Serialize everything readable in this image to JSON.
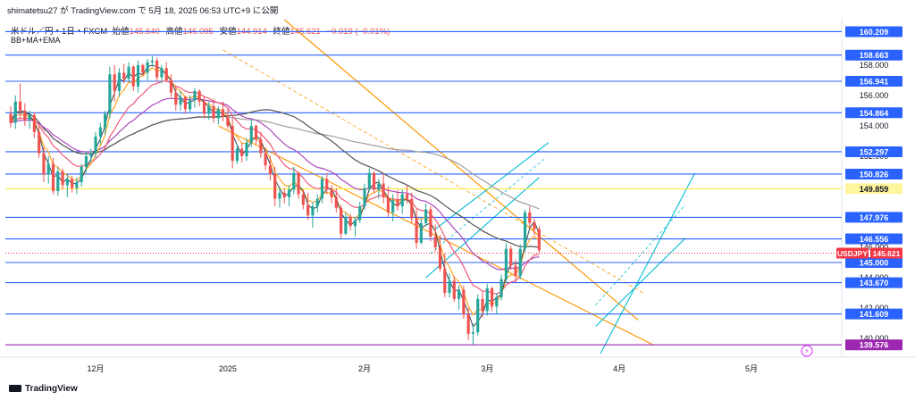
{
  "header": {
    "author_line": "shimatetsu27 が TradingView.com で 5月 18, 2025 06:53 UTC+9 に公開",
    "symbol_line": "米ドル／円・1日・FXCM",
    "open_label": "始値",
    "open": "145.640",
    "high_label": "高値",
    "high": "146.095",
    "low_label": "安値",
    "low": "144.914",
    "close_label": "終値",
    "close": "145.621",
    "change": "−0.019 (−0.01%)",
    "indicators": "BB+MA+EMA"
  },
  "footer": {
    "brand": "TradingView"
  },
  "colors": {
    "up": "#26a69a",
    "down": "#ef5350",
    "level": "#2962ff",
    "channel_orange": "#ff9800",
    "channel_cyan": "#00bcd4",
    "current_price": "#f23645",
    "magenta_level": "#9c27b0",
    "yellow_line": "#ffeb3b",
    "background": "#ffffff"
  },
  "chart_data": {
    "type": "candlestick",
    "symbol": "USDJPY",
    "timeframe": "1日",
    "current_price": 145.621,
    "ylim": [
      139.0,
      161.0
    ],
    "xlim": [
      0,
      175
    ],
    "y_ticks": [
      140,
      142,
      144,
      146,
      148,
      150,
      152,
      154,
      156,
      158
    ],
    "x_ticks": [
      {
        "i": 18,
        "label": "12月"
      },
      {
        "i": 46,
        "label": "2025"
      },
      {
        "i": 75,
        "label": "2月"
      },
      {
        "i": 101,
        "label": "3月"
      },
      {
        "i": 129,
        "label": "4月"
      },
      {
        "i": 157,
        "label": "5月"
      }
    ],
    "levels": [
      {
        "y": 160.209,
        "color": "#2962ff"
      },
      {
        "y": 158.663,
        "color": "#2962ff"
      },
      {
        "y": 156.941,
        "color": "#2962ff"
      },
      {
        "y": 154.864,
        "color": "#2962ff"
      },
      {
        "y": 152.297,
        "color": "#2962ff"
      },
      {
        "y": 150.826,
        "color": "#2962ff"
      },
      {
        "y": 149.859,
        "color": "#ffeb3b"
      },
      {
        "y": 147.976,
        "color": "#2962ff"
      },
      {
        "y": 146.556,
        "color": "#2962ff"
      },
      {
        "y": 145.0,
        "color": "#2962ff"
      },
      {
        "y": 143.67,
        "color": "#2962ff"
      },
      {
        "y": 141.609,
        "color": "#2962ff"
      },
      {
        "y": 139.576,
        "color": "#9c27b0"
      }
    ],
    "level_labels": [
      "160.209",
      "158.663",
      "156.941",
      "154.864",
      "152.297",
      "150.826",
      "149.859",
      "147.976",
      "146.556",
      "145.000",
      "143.670",
      "141.609",
      "139.576"
    ],
    "price_tag": "145.621",
    "candles": [
      [
        0,
        154.8,
        155.3,
        153.9,
        154.2
      ],
      [
        1,
        154.2,
        156.0,
        153.8,
        155.6
      ],
      [
        2,
        155.6,
        156.8,
        154.5,
        155.0
      ],
      [
        3,
        155.0,
        155.5,
        154.0,
        154.4
      ],
      [
        4,
        154.4,
        155.0,
        153.8,
        154.7
      ],
      [
        5,
        154.7,
        154.9,
        153.2,
        153.6
      ],
      [
        6,
        153.6,
        154.1,
        151.9,
        152.2
      ],
      [
        7,
        152.2,
        152.6,
        150.3,
        150.8
      ],
      [
        8,
        150.8,
        152.0,
        150.2,
        151.5
      ],
      [
        9,
        151.5,
        151.9,
        149.5,
        149.7
      ],
      [
        10,
        149.7,
        151.3,
        149.4,
        151.0
      ],
      [
        11,
        151.0,
        151.2,
        149.8,
        150.1
      ],
      [
        12,
        150.1,
        150.8,
        149.3,
        150.5
      ],
      [
        13,
        150.5,
        150.7,
        149.6,
        149.9
      ],
      [
        14,
        149.9,
        150.6,
        149.5,
        150.3
      ],
      [
        15,
        150.3,
        151.5,
        150.0,
        151.3
      ],
      [
        16,
        151.3,
        152.3,
        150.9,
        152.0
      ],
      [
        17,
        152.0,
        152.5,
        151.6,
        152.2
      ],
      [
        18,
        152.2,
        153.6,
        151.9,
        153.3
      ],
      [
        19,
        153.3,
        154.2,
        152.8,
        153.9
      ],
      [
        20,
        153.9,
        155.0,
        153.4,
        154.8
      ],
      [
        21,
        154.8,
        157.9,
        154.5,
        157.4
      ],
      [
        22,
        157.4,
        158.0,
        155.6,
        156.3
      ],
      [
        23,
        156.3,
        157.8,
        155.9,
        157.5
      ],
      [
        24,
        157.5,
        158.1,
        156.8,
        157.1
      ],
      [
        25,
        157.1,
        158.2,
        156.9,
        157.9
      ],
      [
        26,
        157.9,
        158.0,
        156.3,
        156.6
      ],
      [
        27,
        156.6,
        158.3,
        156.2,
        158.0
      ],
      [
        28,
        158.0,
        158.1,
        157.3,
        157.5
      ],
      [
        29,
        157.5,
        158.4,
        157.0,
        158.2
      ],
      [
        30,
        158.2,
        158.6,
        157.9,
        158.3
      ],
      [
        31,
        158.3,
        158.5,
        156.9,
        157.2
      ],
      [
        32,
        157.2,
        158.0,
        156.8,
        157.8
      ],
      [
        33,
        157.8,
        158.2,
        156.9,
        157.0
      ],
      [
        34,
        157.0,
        157.4,
        155.9,
        156.2
      ],
      [
        35,
        156.2,
        156.6,
        155.0,
        155.4
      ],
      [
        36,
        155.4,
        156.3,
        155.0,
        155.9
      ],
      [
        37,
        155.9,
        156.0,
        154.8,
        155.1
      ],
      [
        38,
        155.1,
        156.0,
        154.9,
        155.7
      ],
      [
        39,
        155.7,
        156.5,
        155.2,
        156.3
      ],
      [
        40,
        156.3,
        156.4,
        155.3,
        155.6
      ],
      [
        41,
        155.6,
        156.0,
        154.5,
        154.8
      ],
      [
        42,
        154.8,
        155.6,
        154.4,
        155.3
      ],
      [
        43,
        155.3,
        155.8,
        154.2,
        154.5
      ],
      [
        44,
        154.5,
        155.3,
        154.1,
        155.1
      ],
      [
        45,
        155.1,
        155.6,
        154.3,
        154.6
      ],
      [
        46,
        154.6,
        155.2,
        153.8,
        154.0
      ],
      [
        47,
        154.0,
        154.5,
        151.2,
        151.7
      ],
      [
        48,
        151.7,
        152.8,
        151.5,
        152.5
      ],
      [
        49,
        152.5,
        152.9,
        151.6,
        152.0
      ],
      [
        50,
        152.0,
        153.2,
        151.7,
        152.9
      ],
      [
        51,
        152.9,
        154.4,
        152.6,
        154.0
      ],
      [
        52,
        154.0,
        154.1,
        152.8,
        153.1
      ],
      [
        53,
        153.1,
        153.6,
        151.9,
        152.2
      ],
      [
        54,
        152.2,
        152.6,
        151.1,
        151.4
      ],
      [
        55,
        151.4,
        152.0,
        150.4,
        150.8
      ],
      [
        56,
        150.8,
        151.3,
        148.7,
        149.2
      ],
      [
        57,
        149.2,
        150.0,
        148.6,
        149.6
      ],
      [
        58,
        149.6,
        149.9,
        148.9,
        149.3
      ],
      [
        59,
        149.3,
        150.1,
        148.7,
        149.8
      ],
      [
        60,
        149.8,
        151.3,
        149.5,
        150.9
      ],
      [
        61,
        150.9,
        151.0,
        149.2,
        149.5
      ],
      [
        62,
        149.5,
        149.8,
        148.5,
        148.8
      ],
      [
        63,
        148.8,
        149.6,
        147.8,
        148.1
      ],
      [
        64,
        148.1,
        149.0,
        147.3,
        148.7
      ],
      [
        65,
        148.7,
        149.5,
        148.3,
        149.2
      ],
      [
        66,
        149.2,
        150.7,
        148.9,
        150.5
      ],
      [
        67,
        150.5,
        150.9,
        149.5,
        149.8
      ],
      [
        68,
        149.8,
        150.1,
        148.9,
        149.3
      ],
      [
        69,
        149.3,
        149.9,
        148.3,
        148.6
      ],
      [
        70,
        148.6,
        148.8,
        146.6,
        146.9
      ],
      [
        71,
        146.9,
        148.3,
        146.8,
        148.0
      ],
      [
        72,
        148.0,
        148.2,
        147.1,
        147.4
      ],
      [
        73,
        147.4,
        148.0,
        146.7,
        147.8
      ],
      [
        74,
        147.8,
        149.0,
        147.6,
        148.7
      ],
      [
        75,
        148.7,
        150.2,
        148.5,
        149.9
      ],
      [
        76,
        149.9,
        151.2,
        149.7,
        150.9
      ],
      [
        77,
        150.9,
        151.0,
        149.6,
        149.8
      ],
      [
        78,
        149.8,
        150.5,
        149.2,
        150.2
      ],
      [
        79,
        150.2,
        150.9,
        148.9,
        149.3
      ],
      [
        80,
        149.3,
        150.0,
        148.0,
        148.3
      ],
      [
        81,
        148.3,
        149.5,
        147.7,
        149.1
      ],
      [
        82,
        149.1,
        149.8,
        148.4,
        148.7
      ],
      [
        83,
        148.7,
        149.8,
        148.2,
        149.5
      ],
      [
        84,
        149.5,
        150.1,
        148.9,
        149.2
      ],
      [
        85,
        149.2,
        149.6,
        147.6,
        147.9
      ],
      [
        86,
        147.9,
        148.5,
        145.9,
        146.3
      ],
      [
        87,
        146.3,
        147.9,
        146.2,
        147.6
      ],
      [
        88,
        147.6,
        148.9,
        147.4,
        148.5
      ],
      [
        89,
        148.5,
        148.7,
        146.4,
        146.7
      ],
      [
        90,
        146.7,
        147.5,
        145.7,
        146.0
      ],
      [
        91,
        146.0,
        146.8,
        144.4,
        144.6
      ],
      [
        92,
        144.6,
        145.6,
        142.7,
        143.0
      ],
      [
        93,
        143.0,
        144.3,
        142.7,
        143.8
      ],
      [
        94,
        143.8,
        144.1,
        142.4,
        142.6
      ],
      [
        95,
        142.6,
        143.5,
        141.9,
        143.2
      ],
      [
        96,
        143.2,
        143.5,
        141.3,
        141.6
      ],
      [
        97,
        141.6,
        142.0,
        139.9,
        140.3
      ],
      [
        98,
        140.3,
        141.0,
        139.6,
        140.4
      ],
      [
        99,
        140.4,
        142.9,
        140.2,
        142.6
      ],
      [
        100,
        142.6,
        143.1,
        141.4,
        141.8
      ],
      [
        101,
        141.8,
        143.6,
        141.5,
        143.3
      ],
      [
        102,
        143.3,
        143.4,
        141.8,
        142.1
      ],
      [
        103,
        142.1,
        143.0,
        141.6,
        142.7
      ],
      [
        104,
        142.7,
        144.2,
        142.5,
        143.9
      ],
      [
        105,
        143.9,
        146.3,
        143.7,
        145.9
      ],
      [
        106,
        145.9,
        146.1,
        144.5,
        144.8
      ],
      [
        107,
        144.8,
        145.2,
        143.7,
        144.1
      ],
      [
        108,
        144.1,
        146.2,
        143.9,
        145.9
      ],
      [
        109,
        145.9,
        148.5,
        145.7,
        148.3
      ],
      [
        110,
        148.3,
        148.7,
        147.3,
        147.6
      ],
      [
        111,
        147.6,
        147.9,
        146.8,
        147.2
      ],
      [
        112,
        147.2,
        147.4,
        145.6,
        145.8
      ]
    ]
  }
}
